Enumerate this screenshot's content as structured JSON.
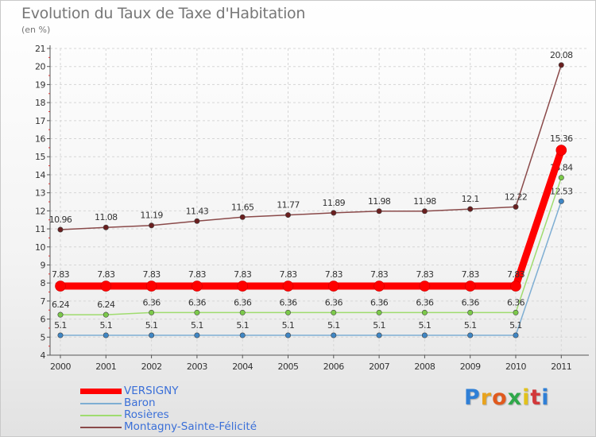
{
  "brand": {
    "letters": [
      "P",
      "r",
      "o",
      "x",
      "i",
      "t",
      "i"
    ],
    "colors": [
      "#2f7fd6",
      "#e8a31e",
      "#e05a1e",
      "#2fa84a",
      "#e2c21c",
      "#d2383a",
      "#2f7fd6"
    ]
  },
  "chart_data": {
    "type": "line",
    "title": "Evolution du Taux de Taxe d'Habitation",
    "subtitle": "(en %)",
    "categories": [
      "2000",
      "2001",
      "2002",
      "2003",
      "2004",
      "2005",
      "2006",
      "2007",
      "2008",
      "2009",
      "2010",
      "2011"
    ],
    "ylim": [
      4,
      21
    ],
    "yticks": [
      "4",
      "5",
      "6",
      "7",
      "8",
      "9",
      "10",
      "11",
      "12",
      "13",
      "14",
      "15",
      "16",
      "17",
      "18",
      "19",
      "20",
      "21"
    ],
    "grid": true,
    "legend_position": "bottom-left",
    "series": [
      {
        "name": "VERSIGNY",
        "color": "#ff0000",
        "marker": "#ff0000",
        "emphasis": true,
        "values": [
          7.83,
          7.83,
          7.83,
          7.83,
          7.83,
          7.83,
          7.83,
          7.83,
          7.83,
          7.83,
          7.83,
          15.36
        ],
        "labels": [
          "7.83",
          "7.83",
          "7.83",
          "7.83",
          "7.83",
          "7.83",
          "7.83",
          "7.83",
          "7.83",
          "7.83",
          "7.83",
          "15.36"
        ]
      },
      {
        "name": "Baron",
        "color": "#7eaed3",
        "marker": "#3f86c4",
        "emphasis": false,
        "values": [
          5.1,
          5.1,
          5.1,
          5.1,
          5.1,
          5.1,
          5.1,
          5.1,
          5.1,
          5.1,
          5.1,
          12.53
        ],
        "labels": [
          "5.1",
          "5.1",
          "5.1",
          "5.1",
          "5.1",
          "5.1",
          "5.1",
          "5.1",
          "5.1",
          "5.1",
          "5.1",
          "12.53"
        ]
      },
      {
        "name": "Rosières",
        "color": "#9fdc6f",
        "marker": "#7bc94a",
        "emphasis": false,
        "values": [
          6.24,
          6.24,
          6.36,
          6.36,
          6.36,
          6.36,
          6.36,
          6.36,
          6.36,
          6.36,
          6.36,
          13.84
        ],
        "labels": [
          "6.24",
          "6.24",
          "6.36",
          "6.36",
          "6.36",
          "6.36",
          "6.36",
          "6.36",
          "6.36",
          "6.36",
          "6.36",
          "13.84"
        ]
      },
      {
        "name": "Montagny-Sainte-Félicité",
        "color": "#8a4a4a",
        "marker": "#6a1f1f",
        "emphasis": false,
        "values": [
          10.96,
          11.08,
          11.19,
          11.43,
          11.65,
          11.77,
          11.89,
          11.98,
          11.98,
          12.1,
          12.22,
          20.08
        ],
        "labels": [
          "10.96",
          "11.08",
          "11.19",
          "11.43",
          "11.65",
          "11.77",
          "11.89",
          "11.98",
          "11.98",
          "12.1",
          "12.22",
          "20.08"
        ]
      }
    ]
  }
}
